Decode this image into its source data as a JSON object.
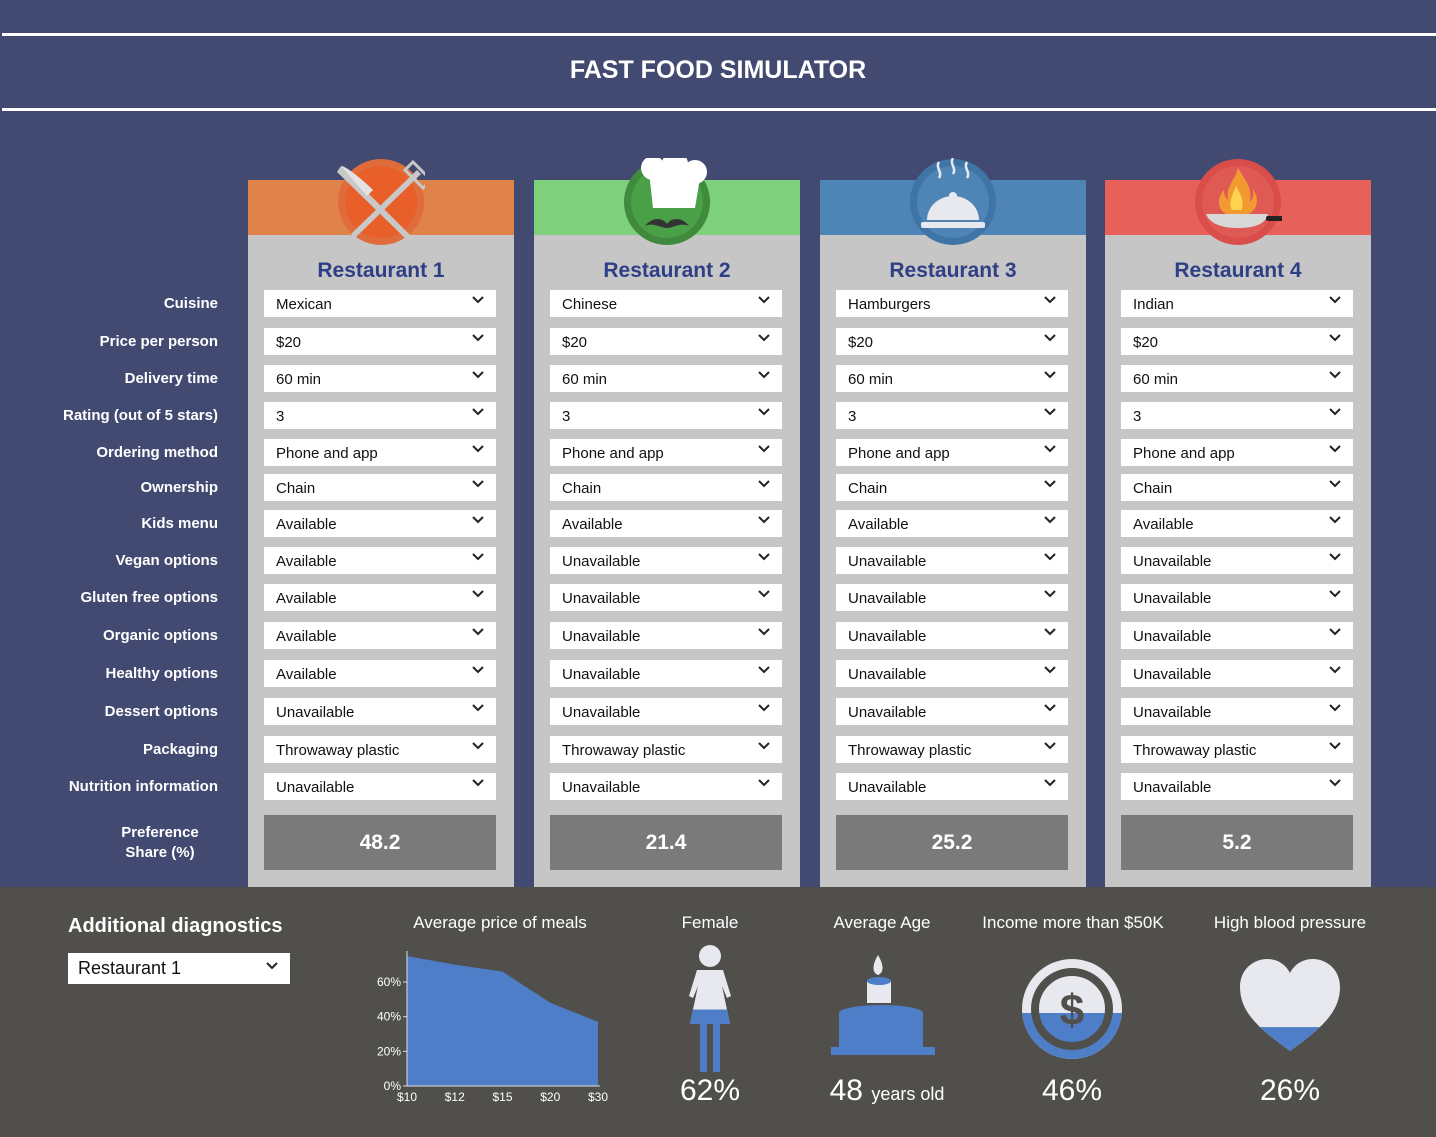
{
  "header": {
    "title": "FAST FOOD SIMULATOR"
  },
  "row_labels": [
    "Cuisine",
    "Price per person",
    "Delivery time",
    "Rating (out of 5 stars)",
    "Ordering method",
    "Ownership",
    "Kids menu",
    "Vegan options",
    "Gluten free options",
    "Organic options",
    "Healthy options",
    "Dessert options",
    "Packaging",
    "Nutrition information"
  ],
  "preference_label": {
    "line1": "Preference",
    "line2": "Share (%)"
  },
  "restaurants": [
    {
      "name": "Restaurant 1",
      "band_color": "#e0834a",
      "icon": "fork-knife-plate-icon",
      "preference": "48.2",
      "values": [
        "Mexican",
        "$20",
        "60 min",
        "3",
        "Phone and app",
        "Chain",
        "Available",
        "Available",
        "Available",
        "Available",
        "Available",
        "Unavailable",
        "Throwaway plastic",
        "Unavailable"
      ]
    },
    {
      "name": "Restaurant 2",
      "band_color": "#7fd07c",
      "icon": "chef-hat-mustache-icon",
      "preference": "21.4",
      "values": [
        "Chinese",
        "$20",
        "60 min",
        "3",
        "Phone and app",
        "Chain",
        "Available",
        "Unavailable",
        "Unavailable",
        "Unavailable",
        "Unavailable",
        "Unavailable",
        "Throwaway plastic",
        "Unavailable"
      ]
    },
    {
      "name": "Restaurant 3",
      "band_color": "#4f85b6",
      "icon": "serving-cloche-icon",
      "preference": "25.2",
      "values": [
        "Hamburgers",
        "$20",
        "60 min",
        "3",
        "Phone and app",
        "Chain",
        "Available",
        "Unavailable",
        "Unavailable",
        "Unavailable",
        "Unavailable",
        "Unavailable",
        "Throwaway plastic",
        "Unavailable"
      ]
    },
    {
      "name": "Restaurant 4",
      "band_color": "#e8605a",
      "icon": "flaming-pan-icon",
      "preference": "5.2",
      "values": [
        "Indian",
        "$20",
        "60 min",
        "3",
        "Phone and app",
        "Chain",
        "Available",
        "Unavailable",
        "Unavailable",
        "Unavailable",
        "Unavailable",
        "Unavailable",
        "Throwaway plastic",
        "Unavailable"
      ]
    }
  ],
  "diagnostics": {
    "title": "Additional diagnostics",
    "selected": "Restaurant 1",
    "stats": [
      {
        "title": "Female",
        "value": "62%",
        "icon": "female-figure-icon",
        "fill_fraction": 0.62
      },
      {
        "title": "Average Age",
        "value": "48",
        "unit": "years old",
        "icon": "birthday-cake-icon"
      },
      {
        "title": "Income more than $50K",
        "value": "46%",
        "icon": "dollar-coin-icon",
        "fill_fraction": 0.46
      },
      {
        "title": "High blood pressure",
        "value": "26%",
        "icon": "heart-icon",
        "fill_fraction": 0.26
      }
    ]
  },
  "chart_data": {
    "type": "area",
    "title": "Average price of meals",
    "x": [
      "$10",
      "$12",
      "$15",
      "$20",
      "$30"
    ],
    "values": [
      75,
      70,
      66,
      48,
      37
    ],
    "yticks": [
      "0%",
      "20%",
      "40%",
      "60%"
    ],
    "ylim": [
      0,
      75
    ],
    "color": "#4e7ec8"
  }
}
